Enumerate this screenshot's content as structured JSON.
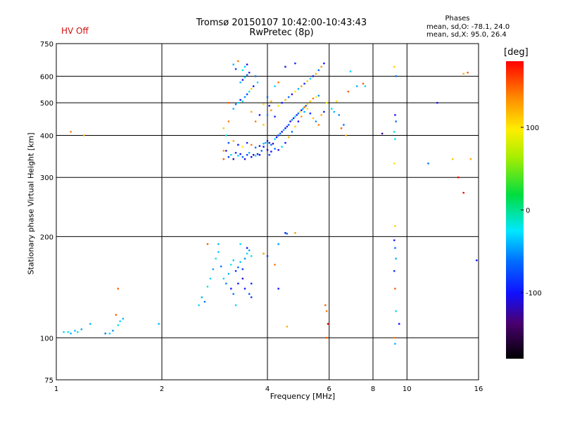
{
  "header": {
    "title": "Tromsø 20150107 10:42:00-10:43:43",
    "subtitle": "RwPretec (8p)",
    "hv_status": "HV Off",
    "phases_title": "Phases",
    "phases_line1": "mean, sd,O: -78.1, 24.0",
    "phases_line2": "mean, sd,X:  95.0, 26.4"
  },
  "colorbar": {
    "unit": "[deg]",
    "range": [
      -180,
      180
    ],
    "ticks": [
      "100",
      "0",
      "-100"
    ],
    "tick_values": [
      100,
      0,
      -100
    ]
  },
  "chart_data": {
    "type": "scatter",
    "title": "Tromsø 20150107 10:42:00-10:43:43",
    "subtitle": "RwPretec (8p)",
    "xlabel": "Frequency [MHz]",
    "ylabel": "Stationary phase Virtual Height [km]",
    "xscale": "log",
    "yscale": "log",
    "xlim": [
      1,
      16
    ],
    "ylim": [
      75,
      750
    ],
    "xticks": [
      1,
      2,
      4,
      6,
      8,
      10,
      16
    ],
    "xtick_labels": [
      "1",
      "2",
      "4",
      "6",
      "8",
      "10",
      "16"
    ],
    "yticks": [
      75,
      100,
      200,
      300,
      400,
      500,
      600,
      750
    ],
    "ytick_labels": [
      "75",
      "100",
      "200",
      "300",
      "400",
      "500",
      "600",
      "750"
    ],
    "grid": true,
    "color_value": "phase [deg]",
    "points": [
      [
        1.05,
        104,
        -30
      ],
      [
        1.08,
        104,
        -25
      ],
      [
        1.1,
        103,
        -40
      ],
      [
        1.13,
        105,
        -35
      ],
      [
        1.15,
        104,
        -20
      ],
      [
        1.18,
        106,
        -45
      ],
      [
        1.38,
        103,
        -60
      ],
      [
        1.42,
        103,
        -30
      ],
      [
        1.45,
        105,
        -50
      ],
      [
        1.5,
        109,
        -20
      ],
      [
        1.55,
        114,
        -40
      ],
      [
        1.52,
        112,
        -30
      ],
      [
        1.48,
        117,
        150
      ],
      [
        1.5,
        140,
        150
      ],
      [
        1.25,
        110,
        -40
      ],
      [
        1.96,
        110,
        -40
      ],
      [
        1.1,
        410,
        140
      ],
      [
        1.2,
        400,
        120
      ],
      [
        2.55,
        125,
        -30
      ],
      [
        2.6,
        132,
        -40
      ],
      [
        2.65,
        128,
        -60
      ],
      [
        2.7,
        142,
        -20
      ],
      [
        2.75,
        150,
        -30
      ],
      [
        2.8,
        160,
        -45
      ],
      [
        2.85,
        172,
        -20
      ],
      [
        2.9,
        180,
        -35
      ],
      [
        2.95,
        163,
        -60
      ],
      [
        3.0,
        150,
        -30
      ],
      [
        3.05,
        145,
        -55
      ],
      [
        3.1,
        155,
        -40
      ],
      [
        3.15,
        165,
        -25
      ],
      [
        3.2,
        170,
        -35
      ],
      [
        3.25,
        158,
        -90
      ],
      [
        3.3,
        162,
        -60
      ],
      [
        3.35,
        168,
        -35
      ],
      [
        3.4,
        160,
        -80
      ],
      [
        3.45,
        172,
        -50
      ],
      [
        3.5,
        178,
        -30
      ],
      [
        3.55,
        182,
        -45
      ],
      [
        3.6,
        175,
        -20
      ],
      [
        3.15,
        140,
        -100
      ],
      [
        3.2,
        135,
        -60
      ],
      [
        3.3,
        145,
        -100
      ],
      [
        3.4,
        150,
        -110
      ],
      [
        3.45,
        140,
        -100
      ],
      [
        3.55,
        135,
        -70
      ],
      [
        3.6,
        145,
        -90
      ],
      [
        2.7,
        190,
        150
      ],
      [
        2.9,
        190,
        -40
      ],
      [
        3.35,
        190,
        -30
      ],
      [
        3.5,
        185,
        -100
      ],
      [
        3.6,
        132,
        -80
      ],
      [
        3.25,
        125,
        -30
      ],
      [
        3.05,
        360,
        -100
      ],
      [
        3.1,
        345,
        -80
      ],
      [
        3.15,
        350,
        -30
      ],
      [
        3.2,
        340,
        -120
      ],
      [
        3.25,
        355,
        -90
      ],
      [
        3.3,
        348,
        -30
      ],
      [
        3.35,
        352,
        -100
      ],
      [
        3.4,
        345,
        -60
      ],
      [
        3.45,
        340,
        -110
      ],
      [
        3.5,
        350,
        -80
      ],
      [
        3.55,
        355,
        -40
      ],
      [
        3.6,
        345,
        -100
      ],
      [
        3.65,
        350,
        -120
      ],
      [
        3.7,
        348,
        -30
      ],
      [
        3.75,
        352,
        -90
      ],
      [
        3.8,
        350,
        -110
      ],
      [
        3.85,
        360,
        -60
      ],
      [
        3.9,
        370,
        -100
      ],
      [
        3.95,
        380,
        -40
      ],
      [
        4.0,
        385,
        -110
      ],
      [
        4.05,
        380,
        -90
      ],
      [
        4.1,
        375,
        -60
      ],
      [
        4.15,
        378,
        -120
      ],
      [
        4.2,
        390,
        -30
      ],
      [
        4.25,
        395,
        -100
      ],
      [
        4.3,
        400,
        -80
      ],
      [
        4.35,
        405,
        -60
      ],
      [
        4.4,
        410,
        -110
      ],
      [
        4.45,
        415,
        -40
      ],
      [
        4.5,
        420,
        -100
      ],
      [
        4.55,
        425,
        -90
      ],
      [
        4.6,
        430,
        -70
      ],
      [
        4.65,
        440,
        -110
      ],
      [
        4.7,
        445,
        -50
      ],
      [
        4.75,
        450,
        -100
      ],
      [
        4.8,
        455,
        -30
      ],
      [
        4.85,
        460,
        -90
      ],
      [
        4.9,
        465,
        -60
      ],
      [
        4.95,
        470,
        100
      ],
      [
        5.0,
        475,
        -100
      ],
      [
        5.05,
        480,
        -40
      ],
      [
        5.1,
        485,
        150
      ],
      [
        5.15,
        490,
        -70
      ],
      [
        5.2,
        495,
        100
      ],
      [
        5.3,
        505,
        110
      ],
      [
        5.4,
        515,
        140
      ],
      [
        5.5,
        520,
        90
      ],
      [
        5.6,
        525,
        -50
      ],
      [
        3.1,
        380,
        -70
      ],
      [
        3.2,
        385,
        120
      ],
      [
        3.3,
        375,
        -100
      ],
      [
        3.4,
        370,
        100
      ],
      [
        3.5,
        380,
        -90
      ],
      [
        3.6,
        375,
        140
      ],
      [
        3.7,
        368,
        -60
      ],
      [
        3.8,
        372,
        -110
      ],
      [
        3.9,
        378,
        -40
      ],
      [
        4.0,
        362,
        -120
      ],
      [
        4.05,
        350,
        -80
      ],
      [
        4.1,
        358,
        -100
      ],
      [
        4.2,
        365,
        -60
      ],
      [
        4.3,
        362,
        -110
      ],
      [
        4.4,
        370,
        -30
      ],
      [
        4.5,
        380,
        -100
      ],
      [
        4.6,
        395,
        120
      ],
      [
        4.7,
        410,
        -60
      ],
      [
        4.8,
        425,
        110
      ],
      [
        4.9,
        440,
        -100
      ],
      [
        5.0,
        455,
        130
      ],
      [
        5.1,
        470,
        -40
      ],
      [
        5.2,
        480,
        100
      ],
      [
        5.3,
        465,
        -90
      ],
      [
        5.4,
        450,
        110
      ],
      [
        5.5,
        440,
        -50
      ],
      [
        5.6,
        430,
        140
      ],
      [
        5.7,
        460,
        120
      ],
      [
        5.8,
        470,
        -100
      ],
      [
        5.9,
        500,
        80
      ],
      [
        3.2,
        480,
        -40
      ],
      [
        3.25,
        495,
        -60
      ],
      [
        3.3,
        500,
        -30
      ],
      [
        3.35,
        510,
        -100
      ],
      [
        3.4,
        505,
        -20
      ],
      [
        3.45,
        520,
        -50
      ],
      [
        3.5,
        530,
        -80
      ],
      [
        3.55,
        540,
        -20
      ],
      [
        3.6,
        550,
        110
      ],
      [
        3.65,
        560,
        -100
      ],
      [
        3.35,
        575,
        -40
      ],
      [
        3.4,
        585,
        -110
      ],
      [
        3.45,
        595,
        -30
      ],
      [
        3.5,
        605,
        -60
      ],
      [
        3.55,
        615,
        -90
      ],
      [
        3.4,
        625,
        -20
      ],
      [
        3.45,
        640,
        -30
      ],
      [
        3.5,
        650,
        -100
      ],
      [
        3.3,
        665,
        140
      ],
      [
        3.2,
        650,
        -40
      ],
      [
        3.25,
        630,
        -80
      ],
      [
        3.7,
        600,
        -60
      ],
      [
        3.75,
        575,
        -30
      ],
      [
        3.6,
        470,
        120
      ],
      [
        3.7,
        440,
        140
      ],
      [
        3.8,
        460,
        -100
      ],
      [
        3.9,
        430,
        110
      ],
      [
        4.0,
        460,
        -50
      ],
      [
        4.1,
        475,
        130
      ],
      [
        4.2,
        455,
        -90
      ],
      [
        4.3,
        490,
        100
      ],
      [
        4.4,
        500,
        -100
      ],
      [
        4.5,
        510,
        120
      ],
      [
        4.6,
        520,
        -60
      ],
      [
        4.7,
        530,
        -110
      ],
      [
        4.8,
        540,
        100
      ],
      [
        4.9,
        550,
        -40
      ],
      [
        5.0,
        560,
        130
      ],
      [
        5.1,
        570,
        -90
      ],
      [
        5.2,
        580,
        110
      ],
      [
        5.3,
        590,
        -30
      ],
      [
        5.4,
        600,
        -100
      ],
      [
        5.5,
        610,
        120
      ],
      [
        5.6,
        625,
        -60
      ],
      [
        5.7,
        640,
        130
      ],
      [
        5.8,
        655,
        -100
      ],
      [
        4.5,
        640,
        -100
      ],
      [
        4.8,
        655,
        -90
      ],
      [
        4.2,
        560,
        -30
      ],
      [
        4.3,
        575,
        140
      ],
      [
        4.0,
        520,
        -60
      ],
      [
        3.9,
        495,
        100
      ],
      [
        4.05,
        490,
        -100
      ],
      [
        4.1,
        505,
        120
      ],
      [
        3.0,
        420,
        110
      ],
      [
        3.05,
        400,
        -20
      ],
      [
        3.1,
        440,
        140
      ],
      [
        3.0,
        360,
        130
      ],
      [
        3.0,
        340,
        150
      ],
      [
        3.1,
        500,
        150
      ],
      [
        6.1,
        480,
        -30
      ],
      [
        6.2,
        470,
        -40
      ],
      [
        6.3,
        505,
        100
      ],
      [
        6.4,
        460,
        -50
      ],
      [
        6.5,
        420,
        150
      ],
      [
        6.6,
        430,
        -60
      ],
      [
        6.7,
        400,
        120
      ],
      [
        6.8,
        540,
        150
      ],
      [
        6.9,
        620,
        -30
      ],
      [
        7.2,
        560,
        -40
      ],
      [
        7.5,
        570,
        150
      ],
      [
        7.6,
        560,
        -30
      ],
      [
        9.2,
        640,
        110
      ],
      [
        9.3,
        600,
        -60
      ],
      [
        9.25,
        460,
        -100
      ],
      [
        9.3,
        440,
        -60
      ],
      [
        9.2,
        410,
        -20
      ],
      [
        9.25,
        390,
        -30
      ],
      [
        9.2,
        330,
        100
      ],
      [
        9.25,
        215,
        110
      ],
      [
        9.2,
        195,
        -100
      ],
      [
        9.25,
        185,
        -60
      ],
      [
        9.3,
        172,
        -40
      ],
      [
        9.2,
        158,
        -90
      ],
      [
        9.25,
        140,
        150
      ],
      [
        9.3,
        120,
        -30
      ],
      [
        9.2,
        100,
        140
      ],
      [
        9.25,
        96,
        -40
      ],
      [
        9.5,
        110,
        -100
      ],
      [
        8.5,
        405,
        -130
      ],
      [
        11.5,
        330,
        -60
      ],
      [
        12.2,
        500,
        -100
      ],
      [
        13.5,
        340,
        110
      ],
      [
        14.0,
        300,
        180
      ],
      [
        14.5,
        270,
        180
      ],
      [
        14.5,
        610,
        120
      ],
      [
        14.9,
        615,
        150
      ],
      [
        15.8,
        170,
        -100
      ],
      [
        15.2,
        340,
        120
      ],
      [
        4.5,
        205,
        -100
      ],
      [
        4.55,
        204,
        -60
      ],
      [
        4.8,
        205,
        130
      ],
      [
        4.3,
        190,
        -50
      ],
      [
        4.0,
        175,
        -80
      ],
      [
        3.9,
        178,
        130
      ],
      [
        4.2,
        165,
        140
      ],
      [
        4.3,
        140,
        -100
      ],
      [
        4.55,
        108,
        120
      ],
      [
        5.85,
        125,
        150
      ],
      [
        5.9,
        120,
        140
      ],
      [
        5.95,
        110,
        180
      ],
      [
        5.9,
        100,
        150
      ]
    ]
  }
}
